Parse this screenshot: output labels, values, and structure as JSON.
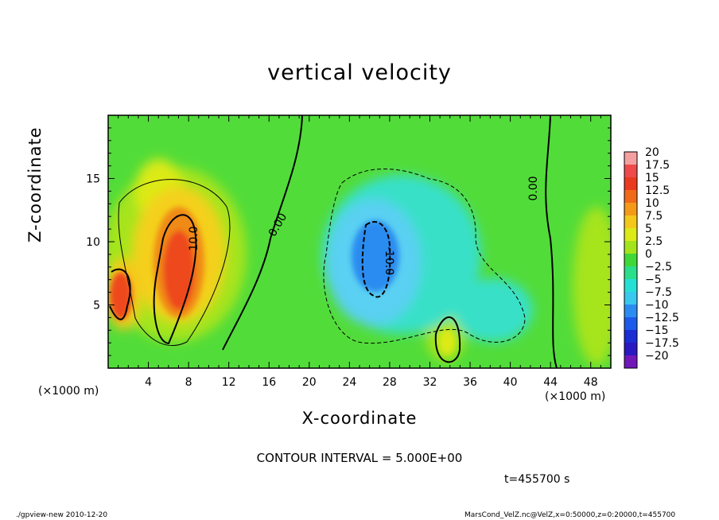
{
  "chart_data": {
    "type": "heatmap",
    "title": "vertical velocity",
    "xlabel": "X-coordinate",
    "ylabel": "Z-coordinate",
    "x_unit_label": "(×1000 m)",
    "xlim": [
      0,
      50
    ],
    "ylim": [
      0,
      20
    ],
    "x_ticks": [
      "4",
      "8",
      "12",
      "16",
      "20",
      "24",
      "28",
      "32",
      "36",
      "40",
      "44",
      "48"
    ],
    "y_ticks": [
      "5",
      "10",
      "15"
    ],
    "colorbar": {
      "labels": [
        "20",
        "17.5",
        "15",
        "12.5",
        "10",
        "7.5",
        "5",
        "2.5",
        "0",
        "−2.5",
        "−5",
        "−7.5",
        "−10",
        "−12.5",
        "−15",
        "−17.5",
        "−20"
      ],
      "colors": [
        "#f4a0a0",
        "#ee4a4a",
        "#ea3a1e",
        "#f06a18",
        "#f49a18",
        "#f4c81a",
        "#dcea18",
        "#a4e41c",
        "#40d838",
        "#2ade8a",
        "#24e0d4",
        "#38c8f0",
        "#2a8cf0",
        "#1e5aea",
        "#1a2ed4",
        "#2a18c0",
        "#7018b8"
      ]
    },
    "features": [
      {
        "label": "10.0",
        "kind": "updraft maximum",
        "x": 6.5,
        "z": 8,
        "value": 15
      },
      {
        "label": "10.0",
        "kind": "updraft",
        "x": 1.5,
        "z": 6,
        "value": 12
      },
      {
        "label": "-10.0",
        "kind": "downdraft minimum",
        "x": 26.5,
        "z": 9,
        "value": -11
      },
      {
        "label": "0.00",
        "kind": "zero contour",
        "x": 17.5,
        "z": 12
      },
      {
        "label": "0.00",
        "kind": "zero contour",
        "x": 42.5,
        "z": 15
      }
    ],
    "contour_interval": "CONTOUR INTERVAL = 5.000E+00",
    "time": "t=455700  s"
  },
  "footer": {
    "left": "./gpview-new   2010-12-20",
    "right": "MarsCond_VelZ.nc@VelZ,x=0:50000,z=0:20000,t=455700"
  }
}
